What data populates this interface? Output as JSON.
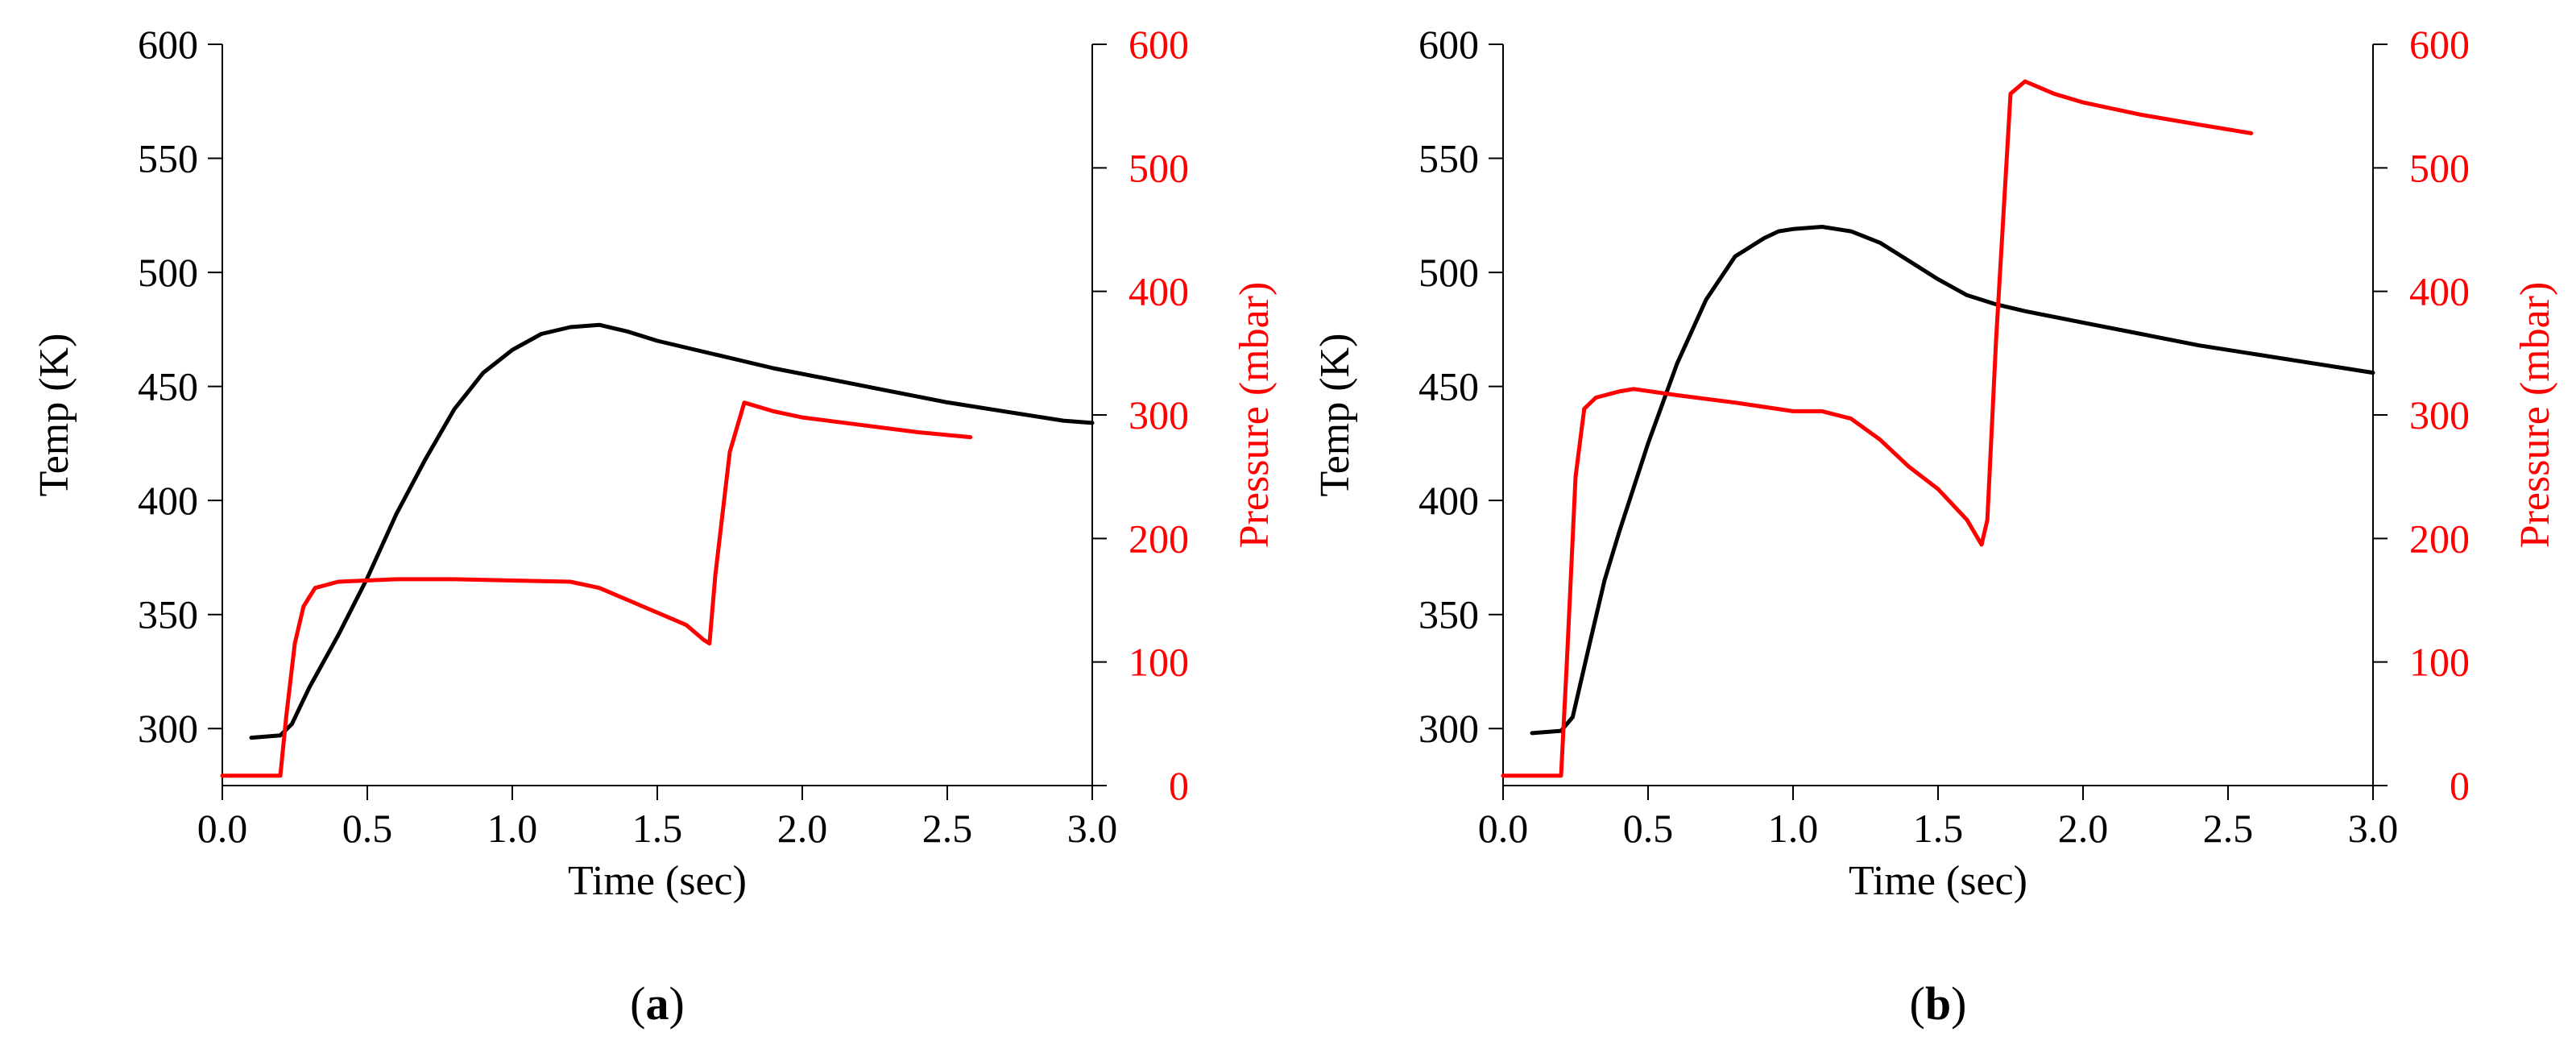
{
  "figure": {
    "caption_prefix": "(",
    "caption_suffix": ")"
  },
  "colors": {
    "temperature": "#000000",
    "pressure": "#ff0000",
    "axes": "#000000"
  },
  "chart_data": [
    {
      "type": "line",
      "panel_label": "a",
      "xlabel": "Time (sec)",
      "ylabel_left": "Temp (K)",
      "ylabel_right": "Pressure (mbar)",
      "xlim": [
        0,
        3
      ],
      "ylim_left": [
        275,
        600
      ],
      "ylim_right": [
        0,
        600
      ],
      "xticks": [
        0,
        0.5,
        1,
        1.5,
        2,
        2.5,
        3
      ],
      "yticks_left": [
        300,
        350,
        400,
        450,
        500,
        550,
        600
      ],
      "yticks_right": [
        0,
        100,
        200,
        300,
        400,
        500,
        600
      ],
      "series": [
        {
          "name": "Temperature",
          "axis": "left",
          "x": [
            0.1,
            0.2,
            0.24,
            0.3,
            0.4,
            0.5,
            0.6,
            0.7,
            0.8,
            0.9,
            1.0,
            1.1,
            1.2,
            1.3,
            1.4,
            1.5,
            1.7,
            1.9,
            2.1,
            2.3,
            2.5,
            2.7,
            2.9,
            3.0
          ],
          "y": [
            296,
            297,
            302,
            318,
            341,
            366,
            394,
            418,
            440,
            456,
            466,
            473,
            476,
            477,
            474,
            470,
            464,
            458,
            453,
            448,
            443,
            439,
            435,
            434
          ]
        },
        {
          "name": "Pressure",
          "axis": "right",
          "x": [
            0,
            0.2,
            0.22,
            0.25,
            0.28,
            0.32,
            0.4,
            0.6,
            0.8,
            1.0,
            1.2,
            1.3,
            1.4,
            1.5,
            1.6,
            1.66,
            1.68,
            1.7,
            1.75,
            1.8,
            1.9,
            2.0,
            2.2,
            2.4,
            2.58
          ],
          "y": [
            8,
            8,
            55,
            115,
            145,
            160,
            165,
            167,
            167,
            166,
            165,
            160,
            150,
            140,
            130,
            118,
            115,
            170,
            270,
            310,
            303,
            298,
            292,
            286,
            282
          ]
        }
      ]
    },
    {
      "type": "line",
      "panel_label": "b",
      "xlabel": "Time (sec)",
      "ylabel_left": "Temp (K)",
      "ylabel_right": "Pressure (mbar)",
      "xlim": [
        0,
        3
      ],
      "ylim_left": [
        275,
        600
      ],
      "ylim_right": [
        0,
        600
      ],
      "xticks": [
        0,
        0.5,
        1,
        1.5,
        2,
        2.5,
        3
      ],
      "yticks_left": [
        300,
        350,
        400,
        450,
        500,
        550,
        600
      ],
      "yticks_right": [
        0,
        100,
        200,
        300,
        400,
        500,
        600
      ],
      "series": [
        {
          "name": "Temperature",
          "axis": "left",
          "x": [
            0.1,
            0.2,
            0.24,
            0.3,
            0.35,
            0.4,
            0.5,
            0.6,
            0.7,
            0.8,
            0.9,
            0.95,
            1.0,
            1.1,
            1.2,
            1.3,
            1.4,
            1.5,
            1.6,
            1.7,
            1.8,
            2.0,
            2.2,
            2.4,
            2.6,
            2.8,
            3.0
          ],
          "y": [
            298,
            299,
            305,
            338,
            365,
            386,
            425,
            460,
            488,
            507,
            515,
            518,
            519,
            520,
            518,
            513,
            505,
            497,
            490,
            486,
            483,
            478,
            473,
            468,
            464,
            460,
            456
          ]
        },
        {
          "name": "Pressure",
          "axis": "right",
          "x": [
            0,
            0.2,
            0.22,
            0.25,
            0.28,
            0.32,
            0.4,
            0.45,
            0.6,
            0.8,
            1.0,
            1.1,
            1.2,
            1.3,
            1.4,
            1.5,
            1.6,
            1.65,
            1.67,
            1.7,
            1.75,
            1.8,
            1.9,
            2.0,
            2.2,
            2.4,
            2.58
          ],
          "y": [
            8,
            8,
            100,
            250,
            305,
            314,
            319,
            321,
            316,
            310,
            303,
            303,
            297,
            280,
            258,
            240,
            215,
            195,
            215,
            360,
            560,
            570,
            560,
            553,
            543,
            535,
            528
          ]
        }
      ]
    }
  ]
}
